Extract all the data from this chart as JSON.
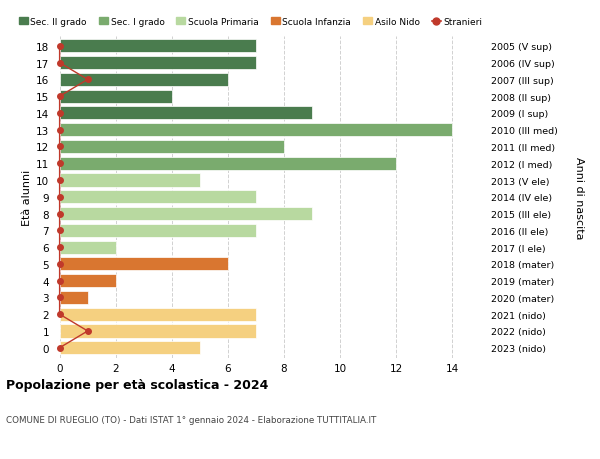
{
  "ages": [
    18,
    17,
    16,
    15,
    14,
    13,
    12,
    11,
    10,
    9,
    8,
    7,
    6,
    5,
    4,
    3,
    2,
    1,
    0
  ],
  "years": [
    "2005 (V sup)",
    "2006 (IV sup)",
    "2007 (III sup)",
    "2008 (II sup)",
    "2009 (I sup)",
    "2010 (III med)",
    "2011 (II med)",
    "2012 (I med)",
    "2013 (V ele)",
    "2014 (IV ele)",
    "2015 (III ele)",
    "2016 (II ele)",
    "2017 (I ele)",
    "2018 (mater)",
    "2019 (mater)",
    "2020 (mater)",
    "2021 (nido)",
    "2022 (nido)",
    "2023 (nido)"
  ],
  "bar_values": [
    7,
    7,
    6,
    4,
    9,
    14,
    8,
    12,
    5,
    7,
    9,
    7,
    2,
    6,
    2,
    1,
    7,
    7,
    5
  ],
  "bar_colors": [
    "#4a7c4e",
    "#4a7c4e",
    "#4a7c4e",
    "#4a7c4e",
    "#4a7c4e",
    "#7aab6e",
    "#7aab6e",
    "#7aab6e",
    "#b8d9a0",
    "#b8d9a0",
    "#b8d9a0",
    "#b8d9a0",
    "#b8d9a0",
    "#d97630",
    "#d97630",
    "#d97630",
    "#f5d080",
    "#f5d080",
    "#f5d080"
  ],
  "stranieri_line_ages": [
    18,
    17,
    16,
    15,
    14,
    13,
    12,
    11,
    10,
    9,
    8,
    7,
    6,
    5,
    4,
    3,
    2,
    1,
    0
  ],
  "stranieri_line_vals": [
    0,
    0,
    1,
    0,
    0,
    0,
    0,
    0,
    0,
    0,
    0,
    0,
    0,
    0,
    0,
    0,
    0,
    1,
    0
  ],
  "title_bold": "Popolazione per età scolastica - 2024",
  "subtitle": "COMUNE DI RUEGLIO (TO) - Dati ISTAT 1° gennaio 2024 - Elaborazione TUTTITALIA.IT",
  "ylabel": "Età alunni",
  "ylabel_right": "Anni di nascita",
  "xlim": [
    -0.2,
    15.2
  ],
  "xticks": [
    0,
    2,
    4,
    6,
    8,
    10,
    12,
    14
  ],
  "legend_labels": [
    "Sec. II grado",
    "Sec. I grado",
    "Scuola Primaria",
    "Scuola Infanzia",
    "Asilo Nido",
    "Stranieri"
  ],
  "legend_colors": [
    "#4a7c4e",
    "#7aab6e",
    "#b8d9a0",
    "#d97630",
    "#f5d080",
    "#c0392b"
  ],
  "bg_color": "#ffffff",
  "grid_color": "#cccccc",
  "bar_height": 0.78
}
